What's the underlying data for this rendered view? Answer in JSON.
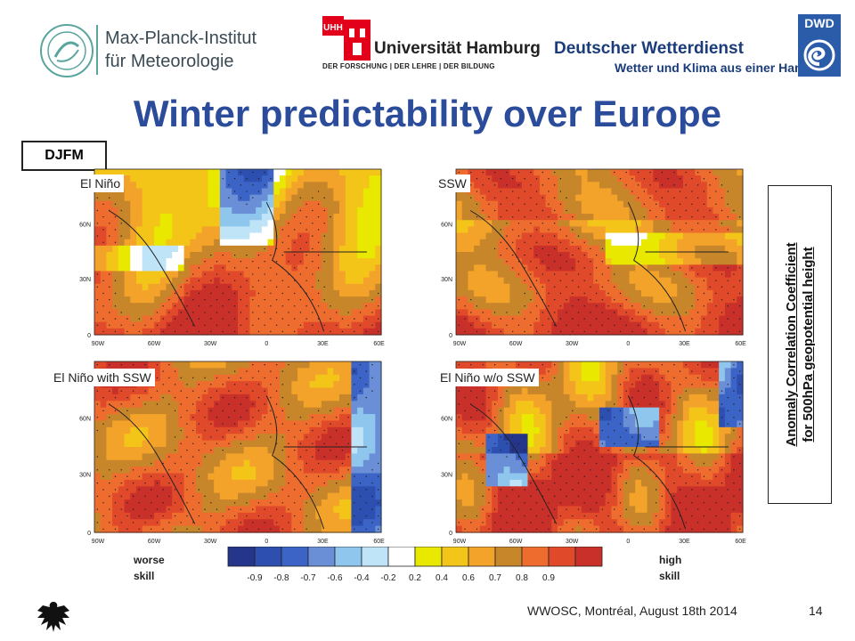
{
  "header": {
    "mpi": {
      "line1": "Max-Planck-Institut",
      "line2": "für Meteorologie"
    },
    "uhh": {
      "badge": "UHH",
      "name": "Universität Hamburg",
      "motto": "DER FORSCHUNG | DER LEHRE | DER BILDUNG"
    },
    "dwd": {
      "name": "Deutscher Wetterdienst",
      "slogan": "Wetter und Klima aus einer Hand",
      "badge": "DWD"
    }
  },
  "title": "Winter predictability over Europe",
  "season": "DJFM",
  "panels": [
    {
      "label": "El Niño",
      "pattern": "elnino"
    },
    {
      "label": "SSW",
      "pattern": "ssw"
    },
    {
      "label": "El Niño with SSW",
      "pattern": "with"
    },
    {
      "label": "El Niño w/o SSW",
      "pattern": "without"
    }
  ],
  "axes": {
    "lat_ticks": [
      "60N",
      "30N",
      "0"
    ],
    "lon_ticks": [
      "90W",
      "60W",
      "30W",
      "0",
      "30E",
      "60E"
    ]
  },
  "side_label": {
    "line1": "Anomaly Correlation Coefficient",
    "line2": "for 500hPa geopotential height"
  },
  "colorbar": {
    "colors": [
      "#24358a",
      "#2d4fb0",
      "#3b64c6",
      "#6b8fd6",
      "#8ec6ee",
      "#bfe4f7",
      "#ffffff",
      "#e8e800",
      "#f4c519",
      "#f3a22a",
      "#c8862b",
      "#ee6d2e",
      "#e04a2a",
      "#c9302a"
    ],
    "labels": [
      "-0.9",
      "-0.8",
      "-0.7",
      "-0.6",
      "-0.4",
      "-0.2",
      "0.2",
      "0.4",
      "0.6",
      "0.7",
      "0.8",
      "0.9"
    ],
    "left_label": {
      "line1": "worse",
      "line2": "skill"
    },
    "right_label": {
      "line1": "high",
      "line2": "skill"
    }
  },
  "footer": {
    "text": "WWOSC, Montréal, August 18th 2014",
    "page": "14"
  }
}
